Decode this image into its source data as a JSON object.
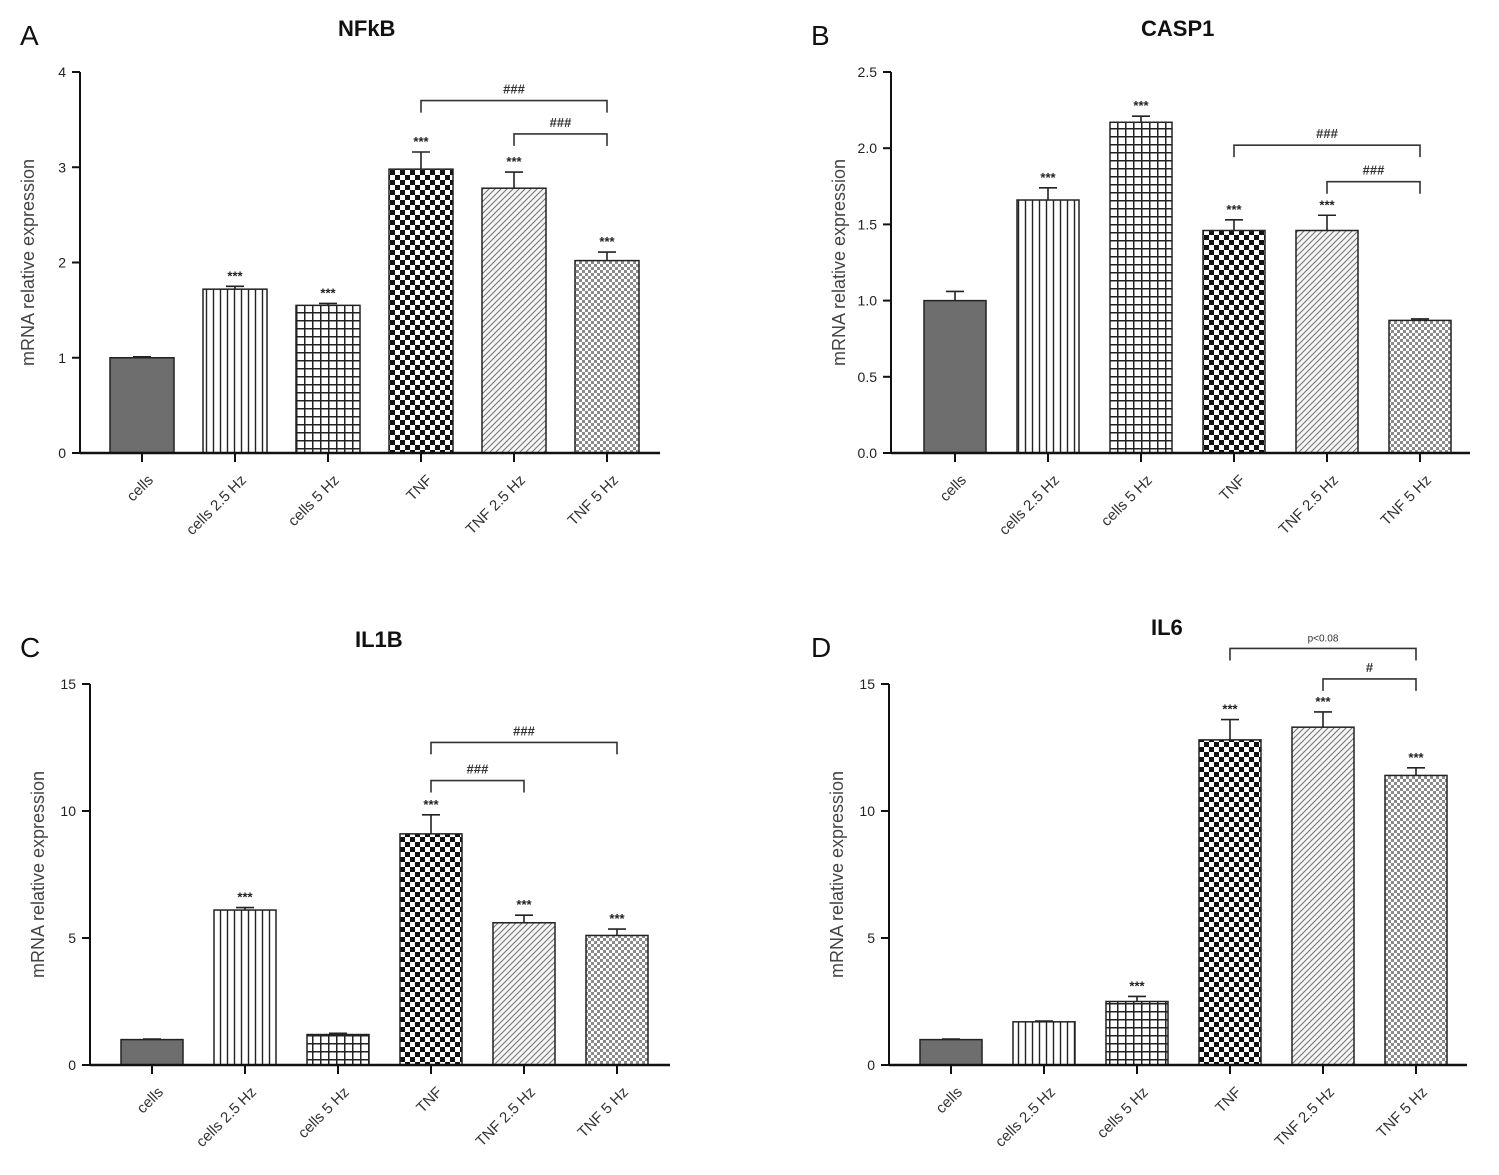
{
  "figure": {
    "categories_common": [
      "cells",
      "cells 2.5 Hz",
      "cells 5 Hz",
      "TNF",
      "TNF 2.5 Hz",
      "TNF 5 Hz"
    ]
  },
  "chart_data": [
    {
      "panel_label": "A",
      "type": "bar",
      "title": "NFkB",
      "ylabel": "mRNA relative expression",
      "categories": [
        "cells",
        "cells 2.5 Hz",
        "cells 5 Hz",
        "TNF",
        "TNF 2.5 Hz",
        "TNF 5 Hz"
      ],
      "values": [
        1.0,
        1.72,
        1.55,
        2.98,
        2.78,
        2.02
      ],
      "errors": [
        0.01,
        0.03,
        0.02,
        0.18,
        0.17,
        0.09
      ],
      "ylim": [
        0,
        4
      ],
      "yticks": [
        "0",
        "1",
        "2",
        "3",
        "4"
      ],
      "ytick_values": [
        0,
        1,
        2,
        3,
        4
      ],
      "bar_labels": [
        "",
        "***",
        "***",
        "***",
        "***",
        "***"
      ],
      "patterns": [
        "solid",
        "vlines",
        "grid",
        "checker",
        "diag",
        "dots"
      ],
      "brackets": [
        {
          "from": 3,
          "to": 5,
          "level": 3.7,
          "label": "###"
        },
        {
          "from": 4,
          "to": 5,
          "level": 3.35,
          "label": "###"
        }
      ]
    },
    {
      "panel_label": "B",
      "type": "bar",
      "title": "CASP1",
      "ylabel": "mRNA relative expression",
      "categories": [
        "cells",
        "cells 2.5 Hz",
        "cells 5 Hz",
        "TNF",
        "TNF 2.5 Hz",
        "TNF 5 Hz"
      ],
      "values": [
        1.0,
        1.66,
        2.17,
        1.46,
        1.46,
        0.87
      ],
      "errors": [
        0.06,
        0.08,
        0.04,
        0.07,
        0.1,
        0.01
      ],
      "ylim": [
        0,
        2.5
      ],
      "yticks": [
        "0.0",
        "0.5",
        "1.0",
        "1.5",
        "2.0",
        "2.5"
      ],
      "ytick_values": [
        0,
        0.5,
        1.0,
        1.5,
        2.0,
        2.5
      ],
      "bar_labels": [
        "",
        "***",
        "***",
        "***",
        "***",
        ""
      ],
      "patterns": [
        "solid",
        "vlines",
        "grid",
        "checker",
        "diag",
        "dots"
      ],
      "brackets": [
        {
          "from": 3,
          "to": 5,
          "level": 2.02,
          "label": "###"
        },
        {
          "from": 4,
          "to": 5,
          "level": 1.78,
          "label": "###"
        }
      ]
    },
    {
      "panel_label": "C",
      "type": "bar",
      "title": "IL1B",
      "ylabel": "mRNA relative expression",
      "categories": [
        "cells",
        "cells 2.5 Hz",
        "cells 5 Hz",
        "TNF",
        "TNF 2.5 Hz",
        "TNF 5 Hz"
      ],
      "values": [
        1.0,
        6.1,
        1.2,
        9.1,
        5.6,
        5.1
      ],
      "errors": [
        0.02,
        0.1,
        0.05,
        0.75,
        0.3,
        0.25
      ],
      "ylim": [
        0,
        15
      ],
      "yticks": [
        "0",
        "5",
        "10",
        "15"
      ],
      "ytick_values": [
        0,
        5,
        10,
        15
      ],
      "bar_labels": [
        "",
        "***",
        "",
        "***",
        "***",
        "***"
      ],
      "patterns": [
        "solid",
        "vlines",
        "grid",
        "checker",
        "diag",
        "dots"
      ],
      "brackets": [
        {
          "from": 3,
          "to": 5,
          "level": 12.7,
          "label": "###"
        },
        {
          "from": 3,
          "to": 4,
          "level": 11.2,
          "label": "###"
        }
      ]
    },
    {
      "panel_label": "D",
      "type": "bar",
      "title": "IL6",
      "ylabel": "mRNA relative expression",
      "categories": [
        "cells",
        "cells 2.5 Hz",
        "cells 5 Hz",
        "TNF",
        "TNF 2.5 Hz",
        "TNF 5 Hz"
      ],
      "values": [
        1.0,
        1.7,
        2.5,
        12.8,
        13.3,
        11.4
      ],
      "errors": [
        0.02,
        0.03,
        0.2,
        0.8,
        0.6,
        0.3
      ],
      "ylim": [
        0,
        15
      ],
      "yticks": [
        "0",
        "5",
        "10",
        "15"
      ],
      "ytick_values": [
        0,
        5,
        10,
        15
      ],
      "bar_labels": [
        "",
        "",
        "***",
        "***",
        "***",
        "***"
      ],
      "patterns": [
        "solid",
        "vlines",
        "grid",
        "checker",
        "diag",
        "dots"
      ],
      "brackets": [
        {
          "from": 3,
          "to": 5,
          "level": 16.4,
          "label": "p<0.08"
        },
        {
          "from": 4,
          "to": 5,
          "level": 15.2,
          "label": "#"
        }
      ]
    }
  ]
}
